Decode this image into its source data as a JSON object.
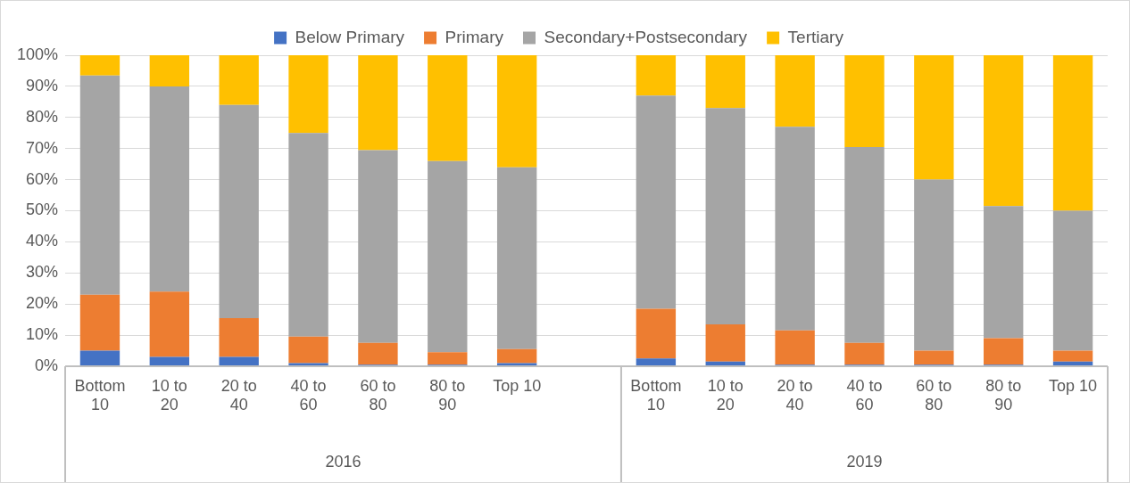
{
  "chart_data": {
    "type": "bar",
    "stacked": true,
    "categories": [
      "Bottom 10",
      "10 to 20",
      "20 to 40",
      "40 to 60",
      "60 to 80",
      "80 to 90",
      "Top 10",
      null,
      "Bottom 10",
      "10 to 20",
      "20 to 40",
      "40 to 60",
      "60 to 80",
      "80 to 90",
      "Top 10"
    ],
    "series": [
      {
        "name": "Below Primary",
        "color": "#4472c4",
        "values": [
          5,
          3,
          3,
          1,
          0.5,
          0.5,
          1,
          null,
          2.5,
          1.5,
          0.5,
          0.5,
          0.5,
          0.5,
          1.5
        ]
      },
      {
        "name": "Primary",
        "color": "#ed7d31",
        "values": [
          18,
          21,
          12.5,
          8.5,
          7,
          4,
          4.5,
          null,
          16,
          12,
          11,
          7,
          4.5,
          8.5,
          3.5
        ]
      },
      {
        "name": "Secondary+Postsecondary",
        "color": "#a5a5a5",
        "values": [
          70.5,
          66,
          68.5,
          65.5,
          62,
          61.5,
          58.5,
          null,
          68.5,
          69.5,
          65.5,
          63,
          55,
          42.5,
          45
        ]
      },
      {
        "name": "Tertiary",
        "color": "#ffc000",
        "values": [
          6.5,
          10,
          16,
          25,
          30.5,
          34,
          36,
          null,
          13,
          17,
          23,
          29.5,
          40,
          48.5,
          50
        ]
      }
    ],
    "ylim": [
      0,
      100
    ],
    "yticks": [
      {
        "value": 0,
        "label": "0%"
      },
      {
        "value": 10,
        "label": "10%"
      },
      {
        "value": 20,
        "label": "20%"
      },
      {
        "value": 30,
        "label": "30%"
      },
      {
        "value": 40,
        "label": "40%"
      },
      {
        "value": 50,
        "label": "50%"
      },
      {
        "value": 60,
        "label": "60%"
      },
      {
        "value": 70,
        "label": "70%"
      },
      {
        "value": 80,
        "label": "80%"
      },
      {
        "value": 90,
        "label": "90%"
      },
      {
        "value": 100,
        "label": "100%"
      }
    ],
    "grid": "y",
    "legend": "top",
    "annotations": [
      "2016",
      "2019"
    ]
  }
}
